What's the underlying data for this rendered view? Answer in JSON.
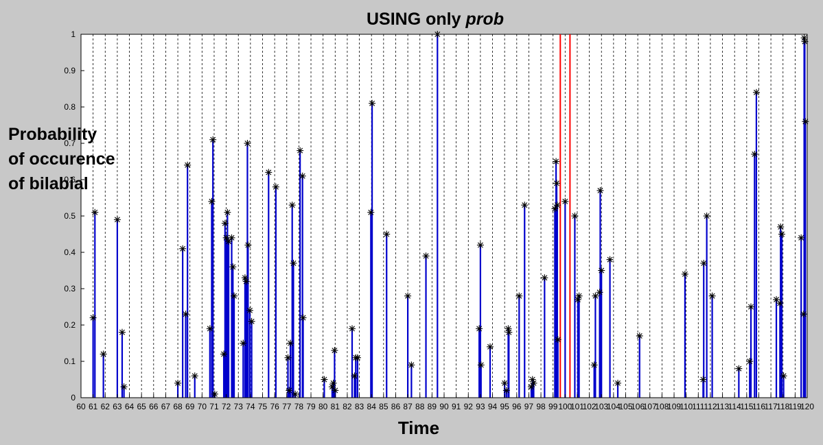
{
  "chart_data": {
    "type": "stem",
    "title_prefix": "USING only ",
    "title_emphasis": "prob",
    "xlabel": "Time",
    "ylabel_lines": [
      "Probability",
      "of occurence",
      "of bilabial"
    ],
    "xlim": [
      60,
      120
    ],
    "ylim": [
      0,
      1
    ],
    "grid": "vertical dashed lines at each integer x",
    "colors": {
      "stem": "#0000cc",
      "marker": "#000000",
      "highlight": "#ff0000",
      "grid": "#000000"
    },
    "xticks": [
      "60",
      "61",
      "62",
      "63",
      "64",
      "65",
      "66",
      "67",
      "68",
      "69",
      "70",
      "71",
      "72",
      "73",
      "74",
      "75",
      "76",
      "77",
      "78",
      "79",
      "80",
      "81",
      "82",
      "83",
      "84",
      "85",
      "86",
      "87",
      "88",
      "89",
      "90",
      "91",
      "92",
      "93",
      "94",
      "95",
      "96",
      "97",
      "98",
      "99",
      "100",
      "101",
      "102",
      "103",
      "104",
      "105",
      "106",
      "107",
      "108",
      "109",
      "110",
      "111",
      "112",
      "113",
      "114",
      "115",
      "116",
      "117",
      "118",
      "119",
      "120"
    ],
    "yticks": [
      "0",
      "0.1",
      "0.2",
      "0.3",
      "0.4",
      "0.5",
      "0.6",
      "0.7",
      "0.8",
      "0.9",
      "1"
    ],
    "highlight_lines_x": [
      99.6,
      100.4
    ],
    "stems": [
      [
        61.0,
        0.22
      ],
      [
        61.15,
        0.51
      ],
      [
        61.85,
        0.12
      ],
      [
        63.0,
        0.49
      ],
      [
        63.4,
        0.18
      ],
      [
        63.55,
        0.03
      ],
      [
        68.0,
        0.04
      ],
      [
        68.4,
        0.41
      ],
      [
        68.65,
        0.23
      ],
      [
        68.8,
        0.64
      ],
      [
        69.4,
        0.06
      ],
      [
        70.65,
        0.19
      ],
      [
        70.8,
        0.54
      ],
      [
        70.9,
        0.71
      ],
      [
        71.05,
        0.01
      ],
      [
        71.8,
        0.12
      ],
      [
        71.9,
        0.48
      ],
      [
        72.0,
        0.44
      ],
      [
        72.1,
        0.51
      ],
      [
        72.2,
        0.43
      ],
      [
        72.45,
        0.44
      ],
      [
        72.55,
        0.36
      ],
      [
        72.65,
        0.28
      ],
      [
        73.4,
        0.15
      ],
      [
        73.55,
        0.33
      ],
      [
        73.65,
        0.32
      ],
      [
        73.75,
        0.7
      ],
      [
        73.8,
        0.42
      ],
      [
        73.95,
        0.24
      ],
      [
        74.1,
        0.21
      ],
      [
        75.5,
        0.62
      ],
      [
        76.1,
        0.58
      ],
      [
        77.1,
        0.11
      ],
      [
        77.2,
        0.02
      ],
      [
        77.3,
        0.15
      ],
      [
        77.45,
        0.53
      ],
      [
        77.55,
        0.37
      ],
      [
        77.7,
        0.01
      ],
      [
        78.1,
        0.68
      ],
      [
        78.3,
        0.61
      ],
      [
        78.35,
        0.22
      ],
      [
        80.1,
        0.05
      ],
      [
        80.75,
        0.03
      ],
      [
        80.85,
        0.04
      ],
      [
        80.95,
        0.13
      ],
      [
        81.0,
        0.02
      ],
      [
        82.4,
        0.19
      ],
      [
        82.6,
        0.06
      ],
      [
        82.7,
        0.11
      ],
      [
        82.85,
        0.11
      ],
      [
        83.95,
        0.51
      ],
      [
        84.05,
        0.81
      ],
      [
        85.25,
        0.45
      ],
      [
        87.0,
        0.28
      ],
      [
        87.3,
        0.09
      ],
      [
        88.5,
        0.39
      ],
      [
        89.45,
        1.0
      ],
      [
        92.9,
        0.19
      ],
      [
        93.0,
        0.42
      ],
      [
        93.05,
        0.09
      ],
      [
        93.8,
        0.14
      ],
      [
        95.0,
        0.04
      ],
      [
        95.15,
        0.02
      ],
      [
        95.3,
        0.19
      ],
      [
        95.35,
        0.18
      ],
      [
        96.2,
        0.28
      ],
      [
        96.65,
        0.53
      ],
      [
        97.2,
        0.03
      ],
      [
        97.3,
        0.05
      ],
      [
        97.4,
        0.04
      ],
      [
        98.3,
        0.33
      ],
      [
        99.15,
        0.52
      ],
      [
        99.25,
        0.65
      ],
      [
        99.3,
        0.59
      ],
      [
        99.35,
        0.53
      ],
      [
        99.4,
        0.16
      ],
      [
        100.0,
        0.54
      ],
      [
        100.8,
        0.5
      ],
      [
        101.05,
        0.27
      ],
      [
        101.15,
        0.28
      ],
      [
        102.4,
        0.09
      ],
      [
        102.5,
        0.28
      ],
      [
        102.85,
        0.29
      ],
      [
        102.9,
        0.57
      ],
      [
        103.0,
        0.35
      ],
      [
        103.7,
        0.38
      ],
      [
        104.35,
        0.04
      ],
      [
        106.15,
        0.17
      ],
      [
        109.9,
        0.34
      ],
      [
        111.4,
        0.05
      ],
      [
        111.45,
        0.37
      ],
      [
        111.7,
        0.5
      ],
      [
        112.15,
        0.28
      ],
      [
        114.35,
        0.08
      ],
      [
        115.25,
        0.1
      ],
      [
        115.35,
        0.25
      ],
      [
        115.65,
        0.67
      ],
      [
        115.8,
        0.84
      ],
      [
        117.45,
        0.27
      ],
      [
        117.75,
        0.26
      ],
      [
        117.8,
        0.47
      ],
      [
        117.9,
        0.45
      ],
      [
        118.05,
        0.06
      ],
      [
        119.5,
        0.44
      ],
      [
        119.7,
        0.23
      ],
      [
        119.75,
        0.99
      ],
      [
        119.8,
        0.98
      ],
      [
        119.85,
        0.76
      ]
    ]
  }
}
